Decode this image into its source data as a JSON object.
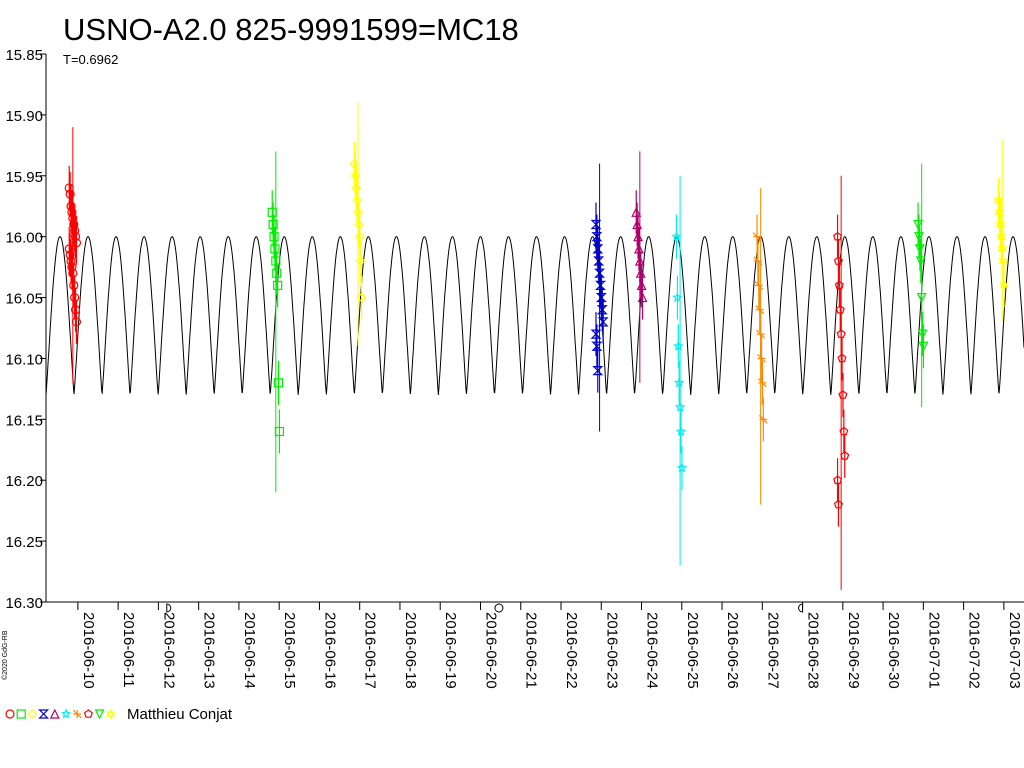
{
  "chart_data": {
    "type": "scatter",
    "title": "USNO-A2.0 825-9991599=MC18",
    "subtitle": "T=0.6962",
    "copyright": "©2020 GdG-RB",
    "observer": "Matthieu Conjat",
    "ylim": [
      15.85,
      16.3
    ],
    "y_inverted": true,
    "y_ticks": [
      "15.85",
      "15.90",
      "15.95",
      "16.00",
      "16.05",
      "16.10",
      "16.15",
      "16.20",
      "16.25",
      "16.30"
    ],
    "x_range": [
      "2016-06-09 05:00",
      "2016-07-03 12:00"
    ],
    "x_ticks": [
      "2016-06-10",
      "2016-06-11",
      "2016-06-12",
      "2016-06-13",
      "2016-06-14",
      "2016-06-15",
      "2016-06-16",
      "2016-06-17",
      "2016-06-18",
      "2016-06-19",
      "2016-06-20",
      "2016-06-21",
      "2016-06-22",
      "2016-06-23",
      "2016-06-24",
      "2016-06-25",
      "2016-06-26",
      "2016-06-27",
      "2016-06-28",
      "2016-06-29",
      "2016-06-30",
      "2016-07-01",
      "2016-07-02",
      "2016-07-03"
    ],
    "grid": false,
    "model_curve": {
      "period_days": 0.6962,
      "mag_max": 16.0,
      "mag_min": 16.13
    },
    "moon_phases": [
      {
        "date": "2016-06-12 05:00",
        "phase": "first-quarter"
      },
      {
        "date": "2016-06-20 11:00",
        "phase": "full"
      },
      {
        "date": "2016-06-28 00:00",
        "phase": "last-quarter"
      }
    ],
    "series": [
      {
        "date": "2016-06-09 21:00",
        "marker": "circle",
        "color": "#ff0000",
        "mag": [
          15.96,
          15.965,
          15.975,
          15.98,
          15.985,
          15.99,
          15.995,
          16.0,
          16.005,
          16.01,
          16.015,
          16.02,
          16.025,
          16.03,
          16.04,
          16.05,
          16.06,
          16.07
        ],
        "err_top": 15.91,
        "err_bottom": 16.12
      },
      {
        "date": "2016-06-14 22:00",
        "marker": "square",
        "color": "#00ee00",
        "mag": [
          15.98,
          15.99,
          16.0,
          16.01,
          16.02,
          16.03,
          16.04,
          16.12,
          16.16
        ],
        "err_top": 15.93,
        "err_bottom": 16.21
      },
      {
        "date": "2016-06-16 23:00",
        "marker": "diamond",
        "color": "#ffff00",
        "mag": [
          15.94,
          15.95,
          15.96,
          15.97,
          15.98,
          15.99,
          16.0,
          16.02,
          16.05
        ],
        "err_top": 15.89,
        "err_bottom": 16.09
      },
      {
        "date": "2016-06-22 23:00",
        "marker": "hourglass",
        "color": "#0000cc",
        "mag": [
          15.99,
          16.0,
          16.01,
          16.02,
          16.03,
          16.04,
          16.05,
          16.06,
          16.07,
          16.08,
          16.09,
          16.11
        ],
        "err_top": 15.94,
        "err_bottom": 16.16
      },
      {
        "date": "2016-06-23 23:00",
        "marker": "triangle",
        "color": "#b0006e",
        "mag": [
          15.98,
          15.99,
          16.0,
          16.01,
          16.02,
          16.03,
          16.04,
          16.05
        ],
        "err_top": 15.93,
        "err_bottom": 16.12
      },
      {
        "date": "2016-06-24 23:00",
        "marker": "star",
        "color": "#00eeee",
        "mag": [
          16.0,
          16.05,
          16.09,
          16.12,
          16.14,
          16.16,
          16.19
        ],
        "err_top": 15.95,
        "err_bottom": 16.27
      },
      {
        "date": "2016-06-26 23:00",
        "marker": "cross",
        "color": "#ff8800",
        "mag": [
          16.0,
          16.02,
          16.04,
          16.06,
          16.08,
          16.1,
          16.12,
          16.15
        ],
        "err_top": 15.96,
        "err_bottom": 16.22
      },
      {
        "date": "2016-06-28 23:00",
        "marker": "pentagon",
        "color": "#ff0000",
        "mag": [
          16.0,
          16.02,
          16.04,
          16.06,
          16.08,
          16.1,
          16.13,
          16.16,
          16.18,
          16.2,
          16.22
        ],
        "err_top": 15.95,
        "err_bottom": 16.29
      },
      {
        "date": "2016-06-30 23:00",
        "marker": "triangle-down",
        "color": "#00ee00",
        "mag": [
          15.99,
          16.0,
          16.01,
          16.02,
          16.05,
          16.08,
          16.09
        ],
        "err_top": 15.94,
        "err_bottom": 16.14
      },
      {
        "date": "2016-07-02 23:00",
        "marker": "star-6",
        "color": "#ffff00",
        "mag": [
          15.97,
          15.98,
          15.99,
          16.0,
          16.01,
          16.02,
          16.04
        ],
        "err_top": 15.92,
        "err_bottom": 16.07
      }
    ]
  }
}
